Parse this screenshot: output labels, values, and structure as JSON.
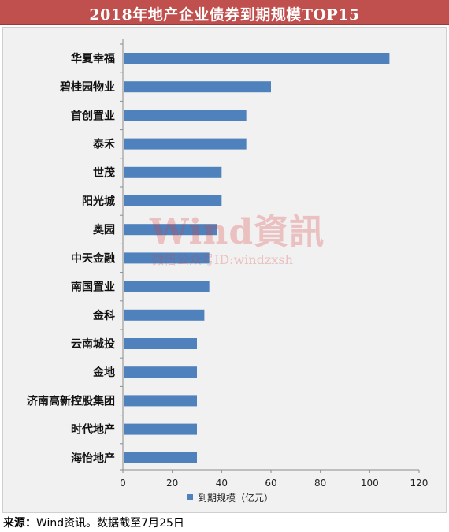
{
  "page": {
    "title": "2018年地产企业债券到期规模TOP15",
    "source_label": "来源：",
    "source_text": "Wind资讯。数据截至7月25日"
  },
  "watermark": {
    "main": "Wind資訊",
    "sub": "微信公众号ID:windzxsh"
  },
  "colors": {
    "title_background": "#c0504d",
    "bar": "#4f81bd",
    "plot_background": "#f1f1f1",
    "watermark": "#d64040"
  },
  "chart_data": {
    "type": "bar",
    "orientation": "horizontal",
    "categories": [
      "华夏幸福",
      "碧桂园物业",
      "首创置业",
      "泰禾",
      "世茂",
      "阳光城",
      "奥园",
      "中天金融",
      "南国置业",
      "金科",
      "云南城投",
      "金地",
      "济南高新控股集团",
      "时代地产",
      "海怡地产"
    ],
    "series": [
      {
        "name": "到期规模（亿元）",
        "values": [
          108,
          60,
          50,
          50,
          40,
          40,
          38,
          35,
          35,
          33,
          30,
          30,
          30,
          30,
          30
        ]
      }
    ],
    "xlim": [
      0,
      120
    ],
    "xticks": [
      0,
      20,
      40,
      60,
      80,
      100,
      120
    ],
    "grid": false,
    "legend_position": "bottom"
  }
}
